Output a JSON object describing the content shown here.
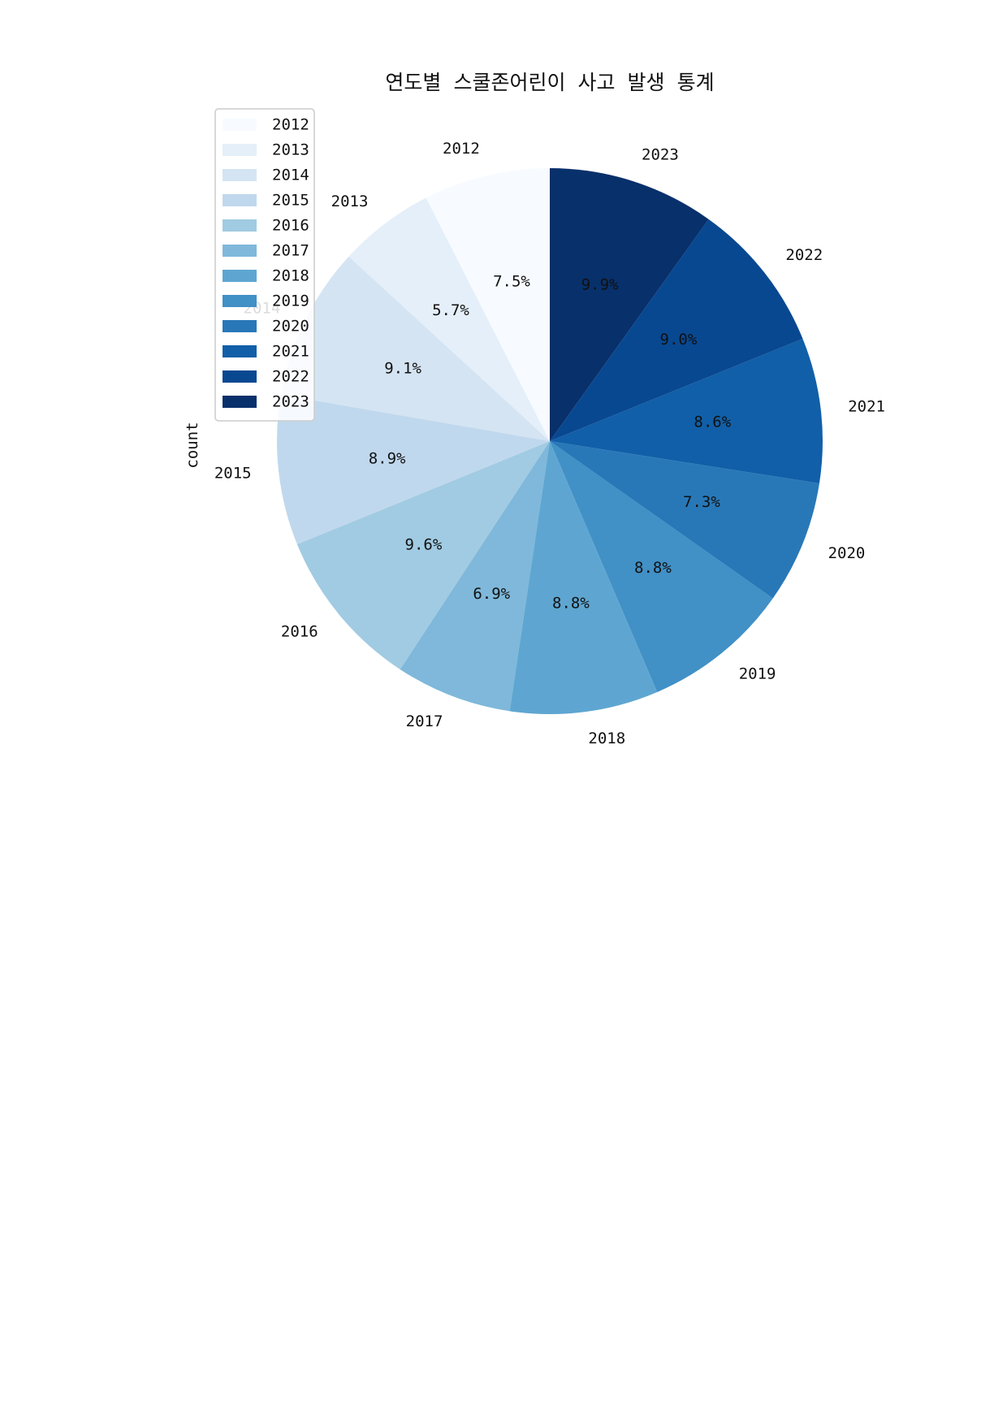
{
  "chart_data": {
    "type": "pie",
    "title": "연도별 스쿨존어린이 사고 발생 통계",
    "ylabel": "count",
    "categories": [
      "2012",
      "2013",
      "2014",
      "2015",
      "2016",
      "2017",
      "2018",
      "2019",
      "2020",
      "2021",
      "2022",
      "2023"
    ],
    "values": [
      7.5,
      5.7,
      9.1,
      8.9,
      9.6,
      6.9,
      8.8,
      8.8,
      7.3,
      8.6,
      9.0,
      9.9
    ],
    "percent_labels": [
      "7.5%",
      "5.7%",
      "9.1%",
      "8.9%",
      "9.6%",
      "6.9%",
      "8.8%",
      "8.8%",
      "7.3%",
      "8.6%",
      "9.0%",
      "9.9%"
    ],
    "colors": [
      "#f7fbff",
      "#e5eff9",
      "#d4e4f3",
      "#c0d8ed",
      "#a1cbe2",
      "#7fb8da",
      "#5ea6d1",
      "#4190c6",
      "#2878b8",
      "#115fa8",
      "#084891",
      "#08306b"
    ],
    "legend": {
      "placement": "upper-left",
      "entries": [
        "2012",
        "2013",
        "2014",
        "2015",
        "2016",
        "2017",
        "2018",
        "2019",
        "2020",
        "2021",
        "2022",
        "2023"
      ]
    },
    "start_angle": "90",
    "direction": "counterclockwise"
  }
}
